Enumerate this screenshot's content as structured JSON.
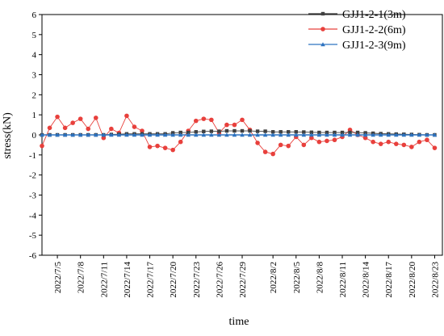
{
  "chart_data": {
    "type": "line",
    "xlabel": "time",
    "ylabel": "stress(kN)",
    "ylim": [
      -6,
      6
    ],
    "y_ticks": [
      6,
      5,
      4,
      3,
      2,
      1,
      0,
      -1,
      -2,
      -3,
      -4,
      -5,
      -6
    ],
    "x_tick_labels": [
      "2022/7/5",
      "2022/7/8",
      "2022/7/11",
      "2022/7/14",
      "2022/7/17",
      "2022/7/20",
      "2022/7/23",
      "2022/7/26",
      "2022/7/29",
      "2022/8/2",
      "2022/8/5",
      "2022/8/8",
      "2022/8/11",
      "2022/8/14",
      "2022/8/17",
      "2022/8/20",
      "2022/8/23"
    ],
    "x_range": [
      "2022/7/3",
      "2022/8/24"
    ],
    "grid": false,
    "legend_position": "top-right",
    "x": [
      "2022/7/3",
      "2022/7/4",
      "2022/7/5",
      "2022/7/6",
      "2022/7/7",
      "2022/7/8",
      "2022/7/9",
      "2022/7/10",
      "2022/7/11",
      "2022/7/12",
      "2022/7/13",
      "2022/7/14",
      "2022/7/15",
      "2022/7/16",
      "2022/7/17",
      "2022/7/18",
      "2022/7/19",
      "2022/7/20",
      "2022/7/21",
      "2022/7/22",
      "2022/7/23",
      "2022/7/24",
      "2022/7/25",
      "2022/7/26",
      "2022/7/27",
      "2022/7/28",
      "2022/7/29",
      "2022/7/30",
      "2022/7/31",
      "2022/8/1",
      "2022/8/2",
      "2022/8/3",
      "2022/8/4",
      "2022/8/5",
      "2022/8/6",
      "2022/8/7",
      "2022/8/8",
      "2022/8/9",
      "2022/8/10",
      "2022/8/11",
      "2022/8/12",
      "2022/8/13",
      "2022/8/14",
      "2022/8/15",
      "2022/8/16",
      "2022/8/17",
      "2022/8/18",
      "2022/8/19",
      "2022/8/20",
      "2022/8/21",
      "2022/8/22",
      "2022/8/23"
    ],
    "series": [
      {
        "name": "GJJ1-2-1(3m)",
        "color": "#404040",
        "marker": "square",
        "values": [
          0,
          0,
          0,
          0,
          0,
          0,
          0,
          0,
          0,
          0.02,
          0.03,
          0.05,
          0.05,
          0.05,
          0.05,
          0.05,
          0.05,
          0.1,
          0.12,
          0.12,
          0.15,
          0.17,
          0.18,
          0.18,
          0.2,
          0.2,
          0.2,
          0.2,
          0.18,
          0.18,
          0.15,
          0.15,
          0.15,
          0.15,
          0.14,
          0.13,
          0.12,
          0.12,
          0.12,
          0.12,
          0.12,
          0.12,
          0.1,
          0.08,
          0.06,
          0.05,
          0.04,
          0.03,
          0.02,
          0.01,
          0,
          0
        ]
      },
      {
        "name": "GJJ1-2-2(6m)",
        "color": "#e8403c",
        "marker": "circle",
        "values": [
          -0.55,
          0.35,
          0.9,
          0.35,
          0.6,
          0.8,
          0.3,
          0.85,
          -0.15,
          0.3,
          0.1,
          0.95,
          0.4,
          0.2,
          -0.6,
          -0.55,
          -0.65,
          -0.75,
          -0.35,
          0.2,
          0.7,
          0.8,
          0.75,
          0.1,
          0.5,
          0.5,
          0.75,
          0.25,
          -0.4,
          -0.85,
          -0.95,
          -0.5,
          -0.55,
          -0.1,
          -0.5,
          -0.15,
          -0.35,
          -0.3,
          -0.25,
          -0.1,
          0.25,
          0,
          -0.15,
          -0.35,
          -0.45,
          -0.35,
          -0.45,
          -0.5,
          -0.6,
          -0.35,
          -0.25,
          -0.65
        ]
      },
      {
        "name": "GJJ1-2-3(9m)",
        "color": "#2e73c0",
        "marker": "triangle",
        "values": [
          0,
          0,
          0,
          0,
          0,
          0,
          0,
          0,
          0,
          0,
          0,
          0,
          0,
          0,
          0,
          0,
          0,
          0,
          0,
          0,
          0,
          0,
          0,
          0,
          0,
          0,
          0,
          0,
          0,
          0,
          0,
          0,
          0,
          0,
          0,
          0,
          0,
          0,
          0,
          0,
          0,
          0,
          0,
          0,
          0,
          0,
          0,
          0,
          0,
          0,
          0,
          0
        ]
      }
    ]
  }
}
